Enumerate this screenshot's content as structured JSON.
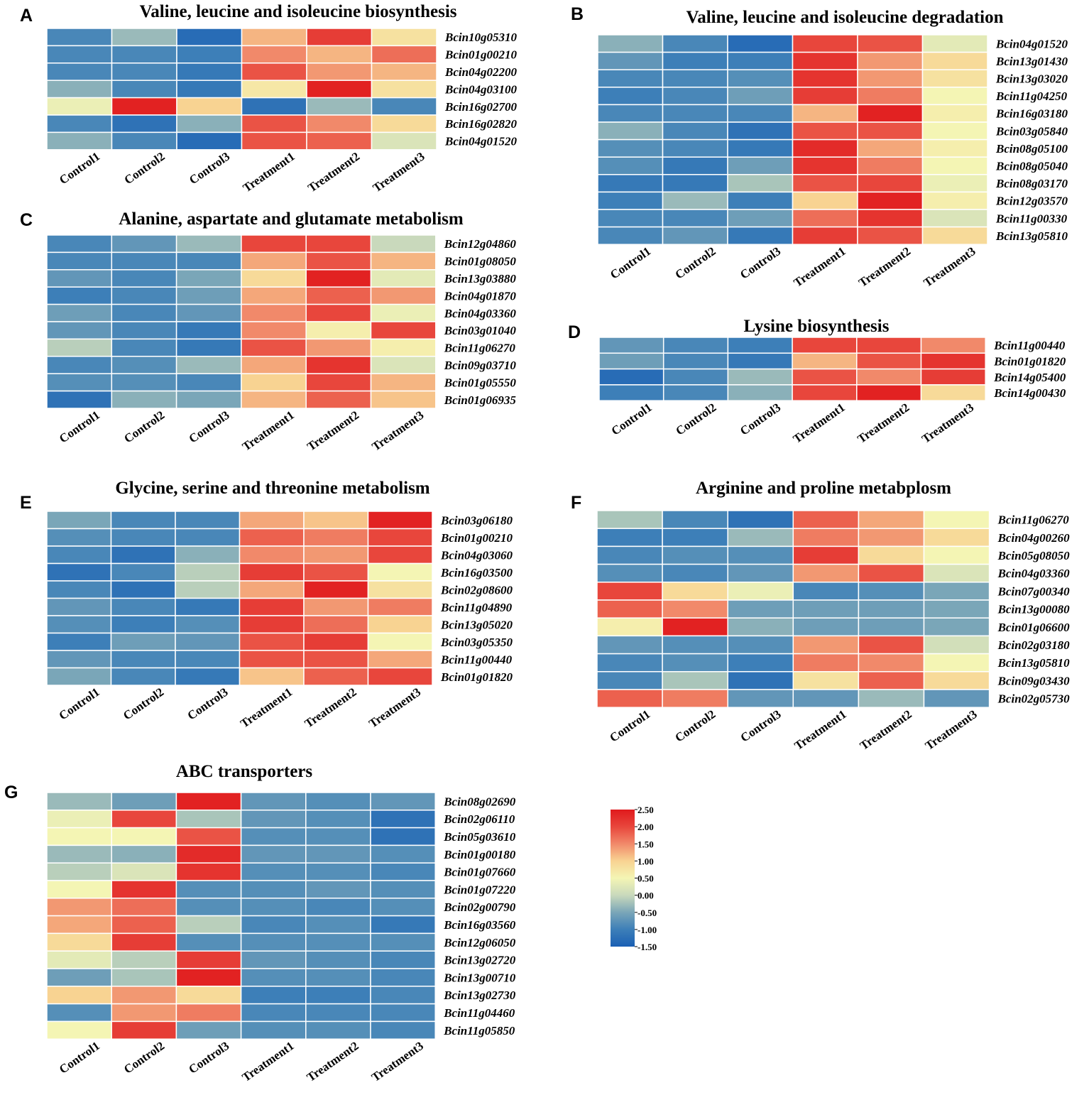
{
  "colorscale": {
    "min": -1.5,
    "max": 2.5,
    "stops": [
      {
        "v": -1.5,
        "c": "#1a5fb4"
      },
      {
        "v": -1.0,
        "c": "#3d7fb8"
      },
      {
        "v": -0.5,
        "c": "#7aa6b8"
      },
      {
        "v": 0.0,
        "c": "#c9d9bc"
      },
      {
        "v": 0.5,
        "c": "#f4f5b4"
      },
      {
        "v": 1.0,
        "c": "#f8d392"
      },
      {
        "v": 1.5,
        "c": "#f1896a"
      },
      {
        "v": 2.0,
        "c": "#e8463c"
      },
      {
        "v": 2.5,
        "c": "#e0191c"
      }
    ],
    "tick_labels": [
      "2.50",
      "2.00",
      "1.50",
      "1.00",
      "0.50",
      "0.00",
      "-0.50",
      "-1.00",
      "-1.50"
    ]
  },
  "chart_data": [
    {
      "type": "heatmap",
      "letter": "A",
      "title": "Valine, leucine and isoleucine biosynthesis",
      "columns": [
        "Control1",
        "Control2",
        "Control3",
        "Treatment1",
        "Treatment2",
        "Treatment3"
      ],
      "rows": [
        "Bcin10g05310",
        "Bcin01g00210",
        "Bcin04g02200",
        "Bcin04g03100",
        "Bcin16g02700",
        "Bcin16g02820",
        "Bcin04g01520"
      ],
      "values": [
        [
          -0.9,
          -0.3,
          -1.3,
          1.2,
          2.1,
          0.8
        ],
        [
          -0.9,
          -0.9,
          -1.0,
          1.5,
          1.2,
          1.7
        ],
        [
          -0.9,
          -0.9,
          -1.1,
          1.9,
          1.4,
          1.2
        ],
        [
          -0.4,
          -0.9,
          -1.1,
          0.7,
          2.4,
          0.8
        ],
        [
          0.4,
          2.4,
          1.0,
          -1.2,
          -0.3,
          -0.9
        ],
        [
          -0.9,
          -1.2,
          -0.4,
          1.9,
          1.5,
          0.9
        ],
        [
          -0.4,
          -0.9,
          -1.3,
          1.9,
          1.8,
          0.2
        ]
      ]
    },
    {
      "type": "heatmap",
      "letter": "B",
      "title": "Valine, leucine and isoleucine degradation",
      "columns": [
        "Control1",
        "Control2",
        "Control3",
        "Treatment1",
        "Treatment2",
        "Treatment3"
      ],
      "rows": [
        "Bcin04g01520",
        "Bcin13g01430",
        "Bcin13g03020",
        "Bcin11g04250",
        "Bcin16g03180",
        "Bcin03g05840",
        "Bcin08g05100",
        "Bcin08g05040",
        "Bcin08g03170",
        "Bcin12g03570",
        "Bcin11g00330",
        "Bcin13g05810"
      ],
      "values": [
        [
          -0.4,
          -0.9,
          -1.3,
          2.0,
          1.9,
          0.3
        ],
        [
          -0.7,
          -1.0,
          -1.0,
          2.2,
          1.4,
          0.9
        ],
        [
          -0.9,
          -0.9,
          -0.8,
          2.2,
          1.4,
          0.8
        ],
        [
          -1.0,
          -0.9,
          -0.6,
          2.1,
          1.6,
          0.5
        ],
        [
          -0.9,
          -0.9,
          -0.9,
          1.2,
          2.4,
          0.6
        ],
        [
          -0.4,
          -0.9,
          -1.2,
          1.9,
          1.9,
          0.5
        ],
        [
          -0.8,
          -0.9,
          -1.1,
          2.3,
          1.3,
          0.6
        ],
        [
          -0.8,
          -1.1,
          -0.6,
          2.2,
          1.6,
          0.5
        ],
        [
          -1.1,
          -1.1,
          -0.2,
          1.9,
          2.0,
          0.4
        ],
        [
          -1.0,
          -0.3,
          -1.0,
          1.0,
          2.4,
          0.6
        ],
        [
          -0.9,
          -0.9,
          -0.6,
          1.7,
          2.2,
          0.2
        ],
        [
          -0.9,
          -0.7,
          -1.1,
          2.1,
          1.9,
          0.9
        ]
      ]
    },
    {
      "type": "heatmap",
      "letter": "C",
      "title": "Alanine, aspartate and glutamate metabolism",
      "columns": [
        "Control1",
        "Control2",
        "Control3",
        "Treatment1",
        "Treatment2",
        "Treatment3"
      ],
      "rows": [
        "Bcin12g04860",
        "Bcin01g08050",
        "Bcin13g03880",
        "Bcin04g01870",
        "Bcin04g03360",
        "Bcin03g01040",
        "Bcin11g06270",
        "Bcin09g03710",
        "Bcin01g05550",
        "Bcin01g06935"
      ],
      "values": [
        [
          -0.9,
          -0.7,
          -0.3,
          2.0,
          2.0,
          0.0
        ],
        [
          -0.9,
          -0.9,
          -0.9,
          1.3,
          1.9,
          1.2
        ],
        [
          -0.7,
          -0.9,
          -0.5,
          0.9,
          2.4,
          0.3
        ],
        [
          -1.0,
          -0.9,
          -0.6,
          1.3,
          1.8,
          1.4
        ],
        [
          -0.6,
          -0.9,
          -0.7,
          1.5,
          2.0,
          0.4
        ],
        [
          -0.7,
          -0.9,
          -1.1,
          1.5,
          0.6,
          2.0
        ],
        [
          -0.1,
          -0.9,
          -1.1,
          1.9,
          1.4,
          0.6
        ],
        [
          -0.9,
          -0.8,
          -0.3,
          1.3,
          2.2,
          0.2
        ],
        [
          -0.8,
          -0.8,
          -0.9,
          1.0,
          2.0,
          1.2
        ],
        [
          -1.2,
          -0.4,
          -0.5,
          1.2,
          1.8,
          1.1
        ]
      ]
    },
    {
      "type": "heatmap",
      "letter": "D",
      "title": "Lysine biosynthesis",
      "columns": [
        "Control1",
        "Control2",
        "Control3",
        "Treatment1",
        "Treatment2",
        "Treatment3"
      ],
      "rows": [
        "Bcin11g00440",
        "Bcin01g01820",
        "Bcin14g05400",
        "Bcin14g00430"
      ],
      "values": [
        [
          -0.7,
          -0.9,
          -1.0,
          2.0,
          2.0,
          1.5
        ],
        [
          -0.6,
          -0.9,
          -1.1,
          1.2,
          1.9,
          2.2
        ],
        [
          -1.3,
          -0.9,
          -0.3,
          1.9,
          1.5,
          2.1
        ],
        [
          -1.0,
          -0.9,
          -0.4,
          2.0,
          2.4,
          0.9
        ]
      ]
    },
    {
      "type": "heatmap",
      "letter": "E",
      "title": "Glycine, serine and threonine metabolism",
      "columns": [
        "Control1",
        "Control2",
        "Control3",
        "Treatment1",
        "Treatment2",
        "Treatment3"
      ],
      "rows": [
        "Bcin03g06180",
        "Bcin01g00210",
        "Bcin04g03060",
        "Bcin16g03500",
        "Bcin02g08600",
        "Bcin11g04890",
        "Bcin13g05020",
        "Bcin03g05350",
        "Bcin11g00440",
        "Bcin01g01820"
      ],
      "values": [
        [
          -0.5,
          -0.9,
          -0.9,
          1.3,
          1.1,
          2.4
        ],
        [
          -0.8,
          -0.9,
          -0.9,
          1.8,
          1.6,
          2.0
        ],
        [
          -0.9,
          -1.2,
          -0.4,
          1.5,
          1.4,
          2.0
        ],
        [
          -1.2,
          -0.9,
          -0.1,
          2.1,
          1.9,
          0.5
        ],
        [
          -0.9,
          -1.2,
          -0.1,
          1.3,
          2.4,
          0.8
        ],
        [
          -0.7,
          -0.9,
          -1.1,
          2.1,
          1.4,
          1.6
        ],
        [
          -0.8,
          -1.0,
          -0.8,
          2.1,
          1.7,
          1.0
        ],
        [
          -1.0,
          -0.6,
          -0.7,
          1.9,
          2.1,
          0.5
        ],
        [
          -0.7,
          -0.9,
          -0.9,
          1.9,
          1.9,
          1.3
        ],
        [
          -0.5,
          -0.9,
          -1.1,
          1.1,
          1.8,
          2.0
        ]
      ]
    },
    {
      "type": "heatmap",
      "letter": "F",
      "title": "Arginine and proline metabplosm",
      "columns": [
        "Control1",
        "Control2",
        "Control3",
        "Treatment1",
        "Treatment2",
        "Treatment3"
      ],
      "rows": [
        "Bcin11g06270",
        "Bcin04g00260",
        "Bcin05g08050",
        "Bcin04g03360",
        "Bcin07g00340",
        "Bcin13g00080",
        "Bcin01g06600",
        "Bcin02g03180",
        "Bcin13g05810",
        "Bcin09g03430",
        "Bcin02g05730"
      ],
      "values": [
        [
          -0.2,
          -0.9,
          -1.2,
          1.8,
          1.3,
          0.5
        ],
        [
          -1.0,
          -1.0,
          -0.3,
          1.6,
          1.4,
          0.9
        ],
        [
          -0.9,
          -0.8,
          -0.8,
          2.1,
          0.9,
          0.5
        ],
        [
          -0.8,
          -0.9,
          -0.7,
          1.4,
          1.9,
          0.2
        ],
        [
          2.0,
          0.9,
          0.4,
          -0.9,
          -0.8,
          -0.5
        ],
        [
          1.8,
          1.5,
          -0.6,
          -0.6,
          -0.6,
          -0.5
        ],
        [
          0.6,
          2.4,
          -0.4,
          -0.6,
          -0.6,
          -0.5
        ],
        [
          -0.7,
          -0.8,
          -0.8,
          1.4,
          1.9,
          0.1
        ],
        [
          -0.9,
          -0.8,
          -1.0,
          1.6,
          1.5,
          0.5
        ],
        [
          -0.9,
          -0.2,
          -1.2,
          0.8,
          1.8,
          0.9
        ],
        [
          1.8,
          1.6,
          -0.7,
          -0.7,
          -0.3,
          -0.7
        ]
      ]
    },
    {
      "type": "heatmap",
      "letter": "G",
      "title": "ABC transporters",
      "columns": [
        "Control1",
        "Control2",
        "Control3",
        "Treatment1",
        "Treatment2",
        "Treatment3"
      ],
      "rows": [
        "Bcin08g02690",
        "Bcin02g06110",
        "Bcin05g03610",
        "Bcin01g00180",
        "Bcin01g07660",
        "Bcin01g07220",
        "Bcin02g00790",
        "Bcin16g03560",
        "Bcin12g06050",
        "Bcin13g02720",
        "Bcin13g00710",
        "Bcin13g02730",
        "Bcin11g04460",
        "Bcin11g05850"
      ],
      "values": [
        [
          -0.3,
          -0.6,
          2.4,
          -0.7,
          -0.8,
          -0.7
        ],
        [
          0.4,
          2.0,
          -0.2,
          -0.7,
          -0.8,
          -1.2
        ],
        [
          0.5,
          0.5,
          1.9,
          -0.8,
          -0.8,
          -1.2
        ],
        [
          -0.3,
          -0.4,
          2.3,
          -0.7,
          -0.7,
          -0.8
        ],
        [
          -0.1,
          0.2,
          2.2,
          -0.8,
          -0.8,
          -0.9
        ],
        [
          0.5,
          2.2,
          -0.8,
          -0.8,
          -0.7,
          -0.8
        ],
        [
          1.4,
          1.7,
          -0.8,
          -0.8,
          -0.9,
          -0.8
        ],
        [
          1.3,
          1.8,
          -0.1,
          -0.9,
          -0.8,
          -1.1
        ],
        [
          0.9,
          2.1,
          -0.8,
          -0.8,
          -0.8,
          -0.8
        ],
        [
          0.3,
          -0.1,
          2.1,
          -0.7,
          -0.8,
          -0.9
        ],
        [
          -0.6,
          -0.2,
          2.4,
          -0.8,
          -0.8,
          -0.9
        ],
        [
          1.0,
          1.4,
          0.9,
          -1.0,
          -1.0,
          -0.9
        ],
        [
          -0.8,
          1.4,
          1.6,
          -0.9,
          -0.9,
          -0.9
        ],
        [
          0.5,
          2.1,
          -0.6,
          -0.8,
          -0.8,
          -0.9
        ]
      ]
    }
  ]
}
